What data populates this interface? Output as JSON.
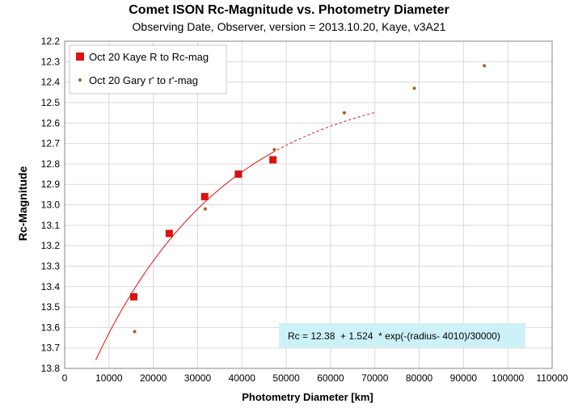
{
  "chart_data": {
    "type": "scatter",
    "title": "Comet ISON Rc-Magnitude  vs. Photometry Diameter",
    "subtitle": "Observing Date, Observer, version = 2013.10.20, Kaye, v3A21",
    "xlabel": "Photometry Diameter  [km]",
    "ylabel": "Rc-Magnitude",
    "xlim": [
      0,
      110000
    ],
    "ylim": [
      12.2,
      13.8
    ],
    "y_inverted": true,
    "grid": true,
    "legend_position": "top-left",
    "x_ticks": [
      "0",
      "10000",
      "20000",
      "30000",
      "40000",
      "50000",
      "60000",
      "70000",
      "80000",
      "90000",
      "100000",
      "110000"
    ],
    "y_ticks": [
      "12.2",
      "12.3",
      "12.4",
      "12.5",
      "12.6",
      "12.7",
      "12.8",
      "12.9",
      "13.0",
      "13.1",
      "13.2",
      "13.3",
      "13.4",
      "13.5",
      "13.6",
      "13.7",
      "13.8"
    ],
    "series": [
      {
        "name": "Oct 20 Kaye R to Rc-mag",
        "marker": "square",
        "color": "#dd1111",
        "x": [
          15600,
          23600,
          31600,
          39200,
          47000
        ],
        "y": [
          13.45,
          13.14,
          12.96,
          12.85,
          12.78
        ]
      },
      {
        "name": "Oct 20 Gary r' to r'-mag",
        "marker": "dot",
        "color": "#b05a1a",
        "x": [
          15800,
          31700,
          47300,
          63100,
          78900,
          94700
        ],
        "y": [
          13.62,
          13.02,
          12.73,
          12.55,
          12.43,
          12.32
        ]
      }
    ],
    "fit": {
      "color": "#dd1111",
      "equation": "Rc = 12.38  + 1.524  * exp(-(radius- 4010)/30000)",
      "params": {
        "a": 12.38,
        "b": 1.524,
        "r0": 4010,
        "scale": 30000
      },
      "solid_range": [
        7000,
        47000
      ],
      "dashed_range": [
        47000,
        70000
      ]
    }
  }
}
